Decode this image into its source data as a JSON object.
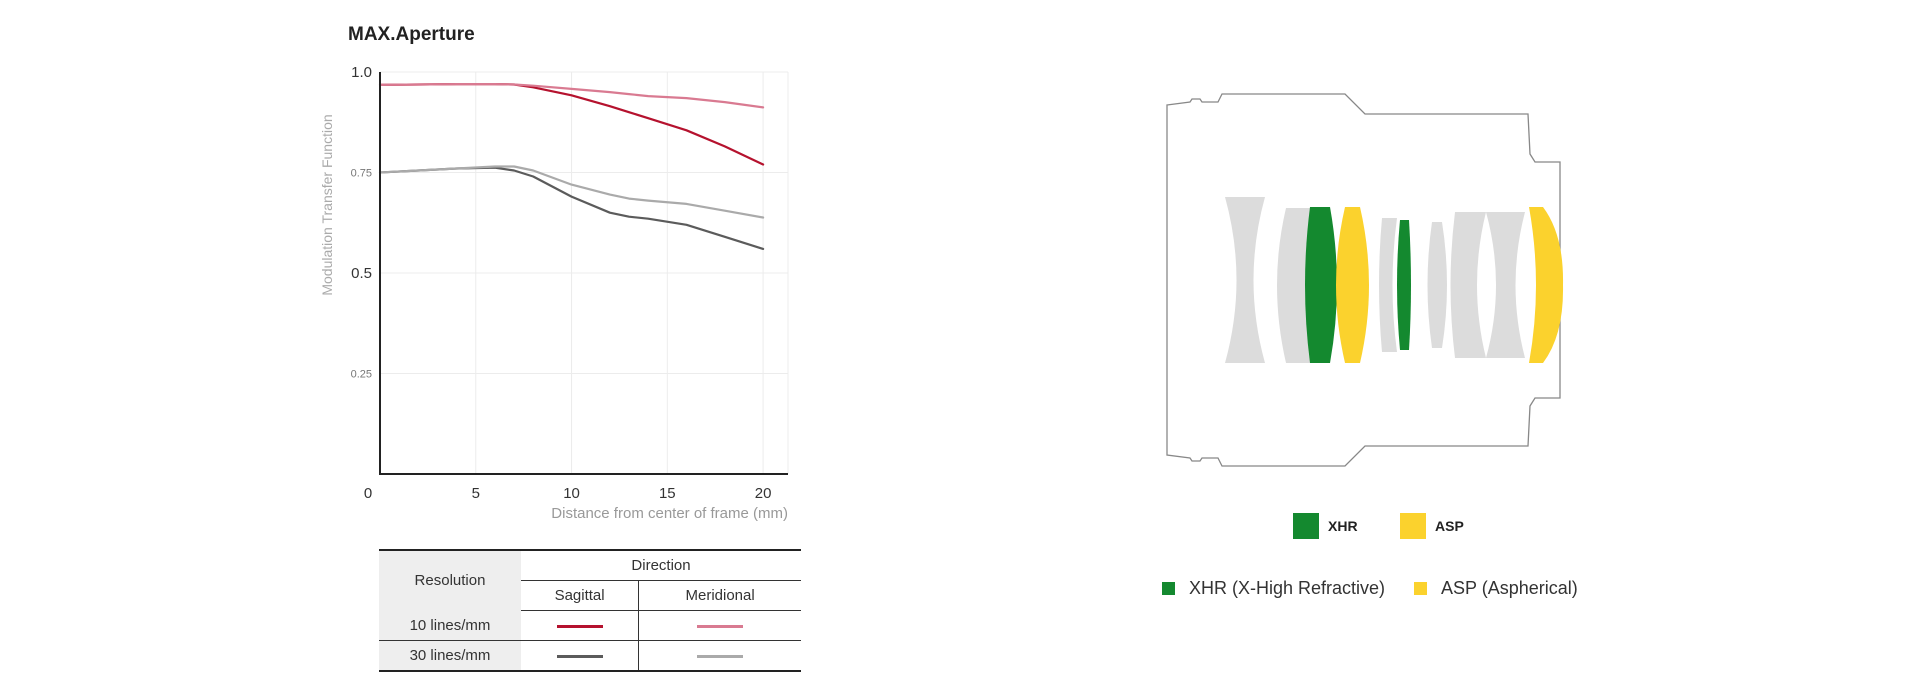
{
  "colors": {
    "sagittal_10": "#b5122e",
    "meridional_10": "#d97a91",
    "sagittal_30": "#5b5b5b",
    "meridional_30": "#aaaaaa",
    "xhr": "#14892f",
    "asp": "#fbd22d",
    "lens_gray": "#dcdcdc",
    "barrel_outline": "#888888"
  },
  "chart_data": {
    "type": "line",
    "title": "MAX.Aperture",
    "xlabel": "Distance from center of frame (mm)",
    "ylabel": "Modulation Transfer Function",
    "xlim": [
      0,
      21.3
    ],
    "ylim": [
      0,
      1.0
    ],
    "x_ticks": [
      {
        "value": 0,
        "label": "0"
      },
      {
        "value": 5,
        "label": "5"
      },
      {
        "value": 10,
        "label": "10"
      },
      {
        "value": 15,
        "label": "15"
      },
      {
        "value": 20,
        "label": "20"
      }
    ],
    "y_ticks": [
      {
        "value": 1.0,
        "label": "1.0",
        "major": true
      },
      {
        "value": 0.75,
        "label": "0.75",
        "major": false
      },
      {
        "value": 0.5,
        "label": "0.5",
        "major": true
      },
      {
        "value": 0.25,
        "label": "0.25",
        "major": false
      }
    ],
    "grid": true,
    "x": [
      0,
      2,
      4,
      6,
      7,
      8,
      10,
      12,
      13,
      14,
      16,
      18,
      20
    ],
    "series": [
      {
        "key": "sagittal_10",
        "values": [
          0.968,
          0.969,
          0.97,
          0.97,
          0.969,
          0.962,
          0.942,
          0.915,
          0.9,
          0.885,
          0.855,
          0.815,
          0.77
        ]
      },
      {
        "key": "meridional_10",
        "values": [
          0.968,
          0.969,
          0.97,
          0.97,
          0.969,
          0.966,
          0.958,
          0.95,
          0.945,
          0.94,
          0.935,
          0.925,
          0.912
        ]
      },
      {
        "key": "sagittal_30",
        "values": [
          0.75,
          0.755,
          0.76,
          0.762,
          0.755,
          0.74,
          0.69,
          0.65,
          0.64,
          0.635,
          0.62,
          0.59,
          0.56
        ]
      },
      {
        "key": "meridional_30",
        "values": [
          0.75,
          0.755,
          0.76,
          0.765,
          0.765,
          0.755,
          0.72,
          0.695,
          0.685,
          0.68,
          0.672,
          0.655,
          0.638
        ]
      }
    ]
  },
  "legend_table": {
    "resolution_header": "Resolution",
    "direction_header": "Direction",
    "sagittal_header": "Sagittal",
    "meridional_header": "Meridional",
    "rows": [
      {
        "label": "10 lines/mm"
      },
      {
        "label": "30 lines/mm"
      }
    ]
  },
  "lens_legend": {
    "xhr_short": "XHR",
    "asp_short": "ASP",
    "xhr_long": "XHR (X-High Refractive)",
    "asp_long": "ASP (Aspherical)"
  }
}
